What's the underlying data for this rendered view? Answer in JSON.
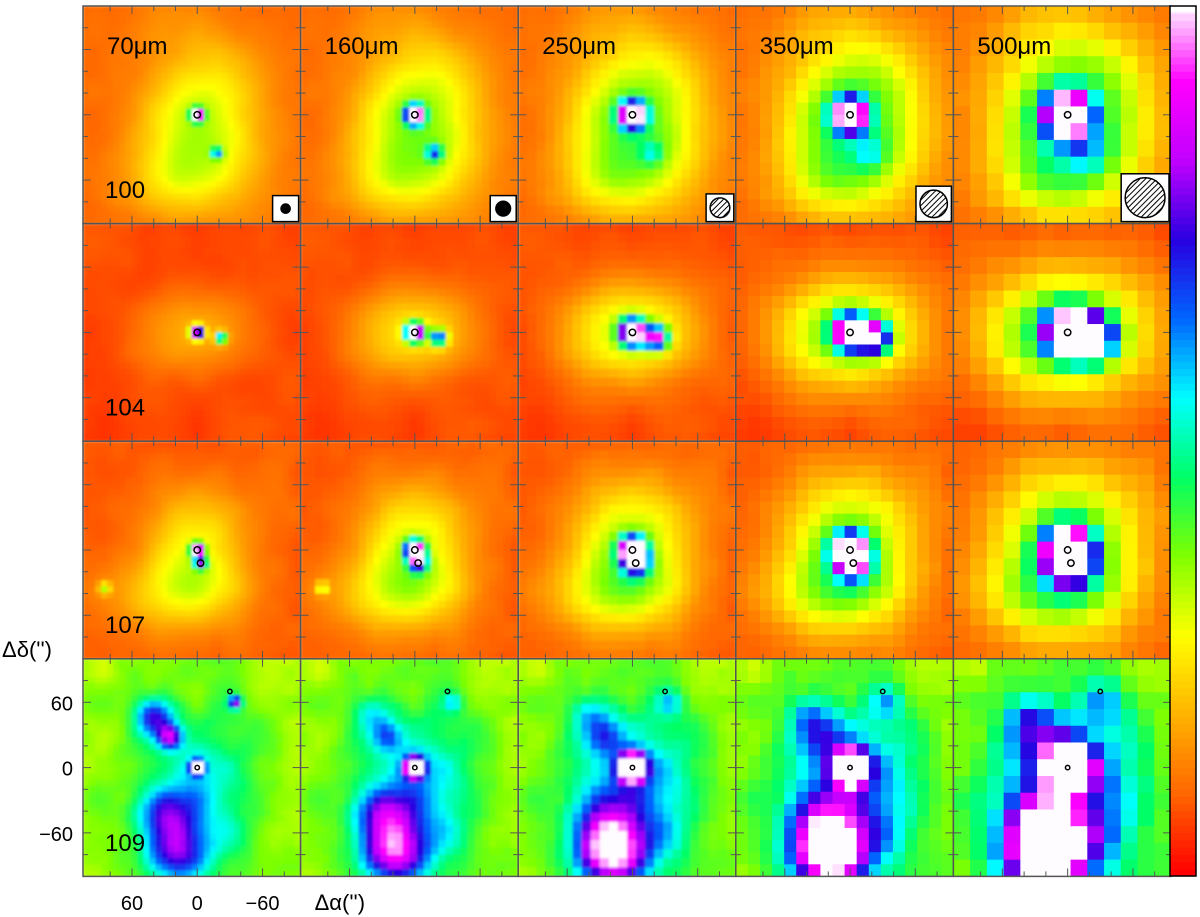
{
  "chart_data": {
    "type": "heatmap",
    "title": "",
    "layout": "grid of 4 rows × 5 columns of intensity maps",
    "wavelengths": [
      "70μm",
      "160μm",
      "250μm",
      "350μm",
      "500μm"
    ],
    "sources": [
      "100",
      "104",
      "107",
      "109"
    ],
    "xlabel": "Δα('')",
    "ylabel": "Δδ('')",
    "x_ticks": [
      60,
      0,
      -60
    ],
    "y_ticks": [
      60,
      0,
      -60
    ],
    "xlim": [
      105,
      -95
    ],
    "ylim": [
      -100,
      100
    ],
    "colormap": [
      "#ff0000",
      "#ff6600",
      "#ffb300",
      "#ffff00",
      "#80ff00",
      "#00ff66",
      "#00ffff",
      "#0066ff",
      "#2800e0",
      "#c000ff",
      "#ff00ff",
      "#ffffff"
    ],
    "colorbar": {
      "position": "right",
      "low_color": "red",
      "high_color": "white"
    },
    "beam_sizes_arcsec": [
      8.4,
      13.5,
      18.1,
      25.2,
      36.6
    ],
    "markers": {
      "100": [
        [
          0,
          0
        ]
      ],
      "104": [
        [
          0,
          0
        ]
      ],
      "107": [
        [
          0,
          0
        ],
        [
          -3,
          -12
        ]
      ],
      "109": [
        [
          0,
          0
        ],
        [
          -30,
          70
        ]
      ]
    },
    "grid": false
  }
}
